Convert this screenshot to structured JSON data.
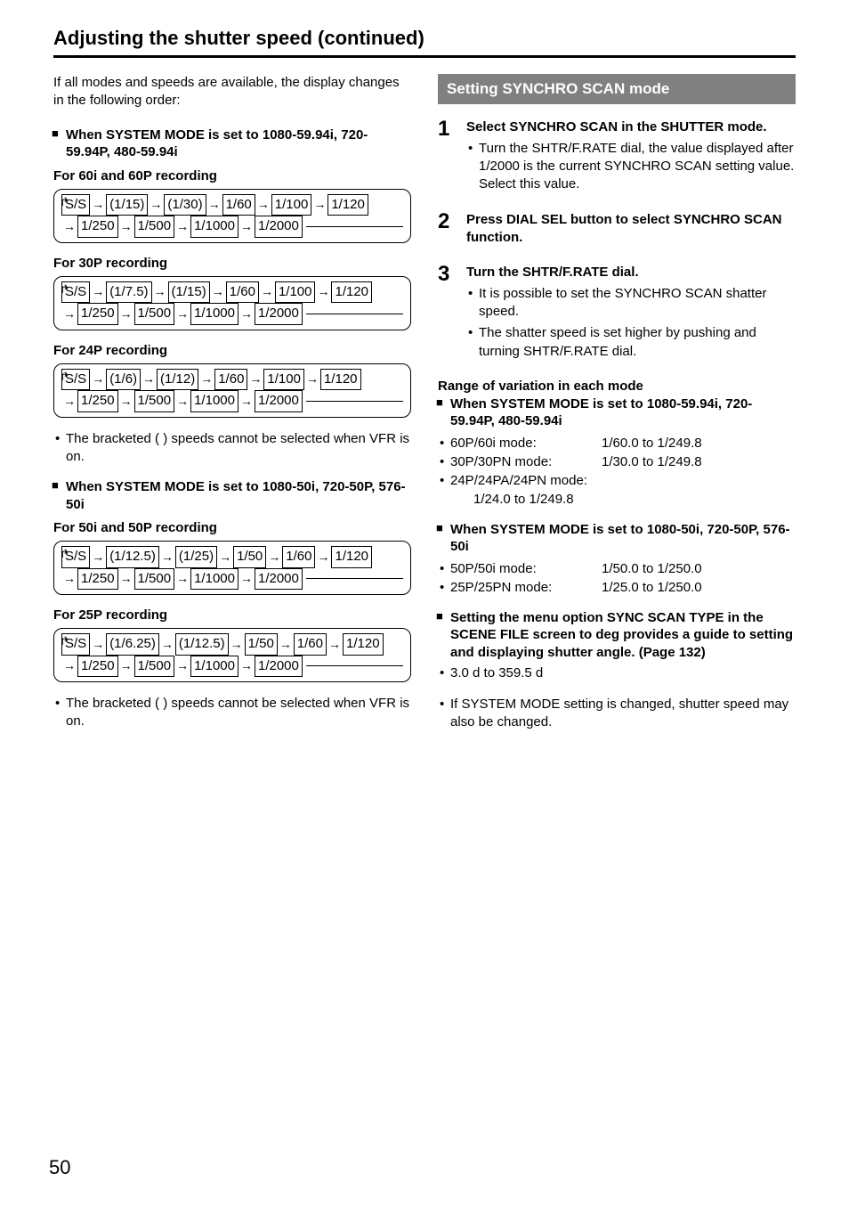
{
  "title": "Adjusting the shutter speed (continued)",
  "pageNumber": "50",
  "left": {
    "intro": "If all modes and speeds are available, the display changes in the following order:",
    "groupA": {
      "heading": "When SYSTEM MODE is set to 1080-59.94i, 720-59.94P, 480-59.94i",
      "sub1": "For 60i and 60P recording",
      "chain1": {
        "r1": [
          "S/S",
          "(1/15)",
          "(1/30)",
          "1/60",
          "1/100",
          "1/120"
        ],
        "r2": [
          "1/250",
          "1/500",
          "1/1000",
          "1/2000"
        ]
      },
      "sub2": "For 30P recording",
      "chain2": {
        "r1": [
          "S/S",
          "(1/7.5)",
          "(1/15)",
          "1/60",
          "1/100",
          "1/120"
        ],
        "r2": [
          "1/250",
          "1/500",
          "1/1000",
          "1/2000"
        ]
      },
      "sub3": "For 24P recording",
      "chain3": {
        "r1": [
          "S/S",
          "(1/6)",
          "(1/12)",
          "1/60",
          "1/100",
          "1/120"
        ],
        "r2": [
          "1/250",
          "1/500",
          "1/1000",
          "1/2000"
        ]
      },
      "note": "The bracketed ( ) speeds cannot be selected when VFR is on."
    },
    "groupB": {
      "heading": "When SYSTEM MODE is set to 1080-50i, 720-50P, 576-50i",
      "sub1": "For 50i and 50P recording",
      "chain1": {
        "r1": [
          "S/S",
          "(1/12.5)",
          "(1/25)",
          "1/50",
          "1/60",
          "1/120"
        ],
        "r2": [
          "1/250",
          "1/500",
          "1/1000",
          "1/2000"
        ]
      },
      "sub2": "For 25P recording",
      "chain2": {
        "r1": [
          "S/S",
          "(1/6.25)",
          "(1/12.5)",
          "1/50",
          "1/60",
          "1/120"
        ],
        "r2": [
          "1/250",
          "1/500",
          "1/1000",
          "1/2000"
        ]
      },
      "note": "The bracketed ( ) speeds cannot be selected when VFR is on."
    }
  },
  "right": {
    "banner": "Setting SYNCHRO SCAN mode",
    "steps": [
      {
        "num": "1",
        "title": "Select SYNCHRO SCAN in the SHUTTER mode.",
        "bullets": [
          "Turn the SHTR/F.RATE dial, the value displayed after 1/2000 is the current SYNCHRO SCAN setting value. Select this value."
        ]
      },
      {
        "num": "2",
        "title": "Press DIAL SEL button to select SYNCHRO SCAN function.",
        "bullets": []
      },
      {
        "num": "3",
        "title": "Turn the SHTR/F.RATE dial.",
        "bullets": [
          "It is possible to set the SYNCHRO SCAN shatter speed.",
          "The shatter speed is set higher by pushing and turning SHTR/F.RATE dial."
        ]
      }
    ],
    "rangeHeading": "Range of variation in each mode",
    "rangeA": {
      "heading": "When SYSTEM MODE is set to 1080-59.94i, 720-59.94P, 480-59.94i",
      "rows": [
        {
          "label": "60P/60i mode:",
          "val": "1/60.0 to 1/249.8"
        },
        {
          "label": "30P/30PN mode:",
          "val": "1/30.0 to 1/249.8"
        },
        {
          "label": "24P/24PA/24PN mode:",
          "val": ""
        }
      ],
      "indent": "1/24.0 to 1/249.8"
    },
    "rangeB": {
      "heading": "When SYSTEM MODE is set to 1080-50i, 720-50P, 576-50i",
      "rows": [
        {
          "label": "50P/50i mode:",
          "val": "1/50.0 to 1/250.0"
        },
        {
          "label": "25P/25PN mode:",
          "val": "1/25.0 to 1/250.0"
        }
      ]
    },
    "syncScan": {
      "heading": "Setting the menu option SYNC SCAN TYPE in the SCENE FILE screen to deg provides a guide to setting and displaying shutter angle. (Page 132)",
      "bullet": "3.0 d to 359.5 d"
    },
    "footNote": "If SYSTEM MODE setting is changed, shutter speed may also be changed."
  }
}
